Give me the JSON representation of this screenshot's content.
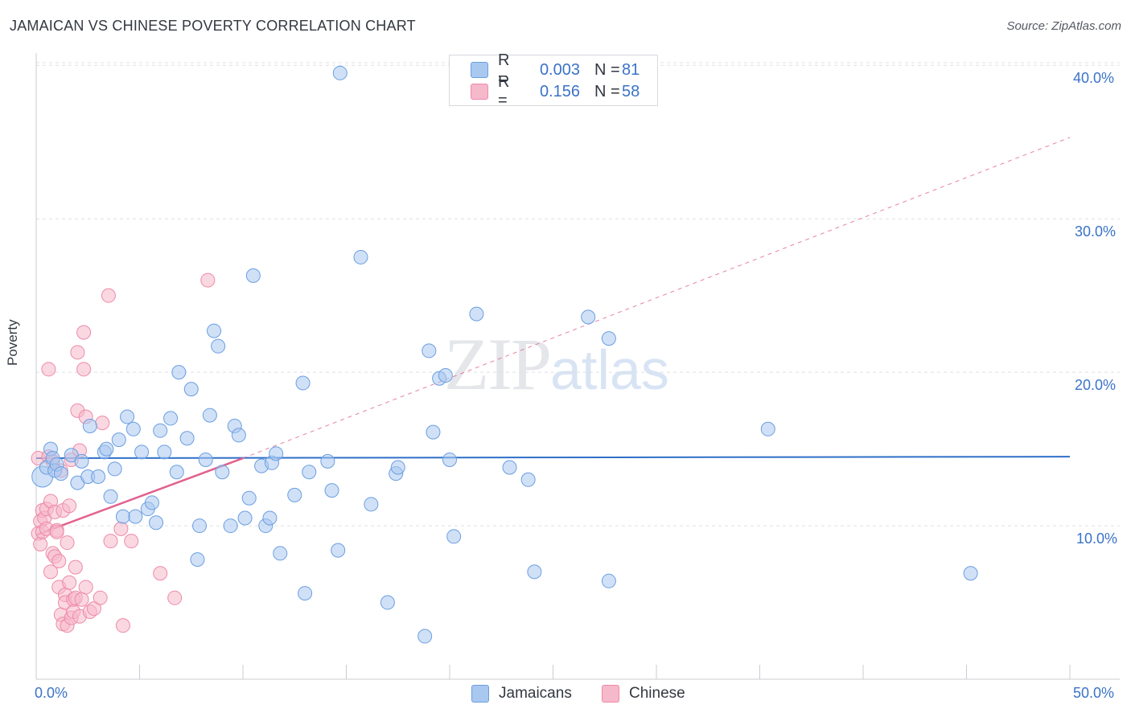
{
  "title": "JAMAICAN VS CHINESE POVERTY CORRELATION CHART",
  "source": "Source: ZipAtlas.com",
  "watermark": {
    "zip": "ZIP",
    "atlas": "atlas"
  },
  "legend": {
    "rows": [
      {
        "r_label": "R =",
        "r_value": "0.003",
        "n_label": "N =",
        "n_value": "81",
        "color": "#a9c8f0"
      },
      {
        "r_label": "R =",
        "r_value": "0.156",
        "n_label": "N =",
        "n_value": "58",
        "color": "#f6b8cb"
      }
    ]
  },
  "bottom_legend": [
    {
      "label": "Jamaicans",
      "color": "#a9c8f0"
    },
    {
      "label": "Chinese",
      "color": "#f6b8cb"
    }
  ],
  "colors": {
    "jamaican_fill": "#a9c8f0",
    "jamaican_stroke": "#6b9ee0",
    "jamaican_line": "#2e6fc8",
    "chinese_fill": "#f6b8cb",
    "chinese_stroke": "#ee8aa8",
    "chinese_line": "#e2628e",
    "grid": "#dde0e5",
    "axis_text": "#3a73c8"
  },
  "chart_data": {
    "type": "scatter",
    "title": "JAMAICAN VS CHINESE POVERTY CORRELATION CHART",
    "xlabel": "",
    "ylabel": "Poverty",
    "xlim": [
      0,
      50
    ],
    "ylim": [
      0,
      40.8
    ],
    "x_tick_labels": [
      "0.0%",
      "50.0%"
    ],
    "y_ticks": [
      10,
      20,
      30,
      40
    ],
    "y_tick_labels": [
      "10.0%",
      "20.0%",
      "30.0%",
      "40.0%"
    ],
    "grid": true,
    "legend_position": "top-center",
    "series": [
      {
        "name": "Jamaicans",
        "R": 0.003,
        "N": 81,
        "trend": {
          "x": [
            0,
            50
          ],
          "y": [
            14.4,
            14.5
          ],
          "style": "solid"
        },
        "points": [
          [
            0.3,
            13.2
          ],
          [
            0.5,
            13.8
          ],
          [
            0.7,
            15.0
          ],
          [
            0.8,
            14.4
          ],
          [
            0.9,
            13.6
          ],
          [
            1.0,
            14.0
          ],
          [
            1.2,
            13.4
          ],
          [
            1.7,
            14.6
          ],
          [
            2.0,
            12.8
          ],
          [
            2.2,
            14.2
          ],
          [
            2.5,
            13.2
          ],
          [
            2.6,
            16.5
          ],
          [
            3.0,
            13.2
          ],
          [
            3.3,
            14.8
          ],
          [
            3.4,
            15.0
          ],
          [
            3.6,
            11.9
          ],
          [
            3.8,
            13.7
          ],
          [
            4.0,
            15.6
          ],
          [
            4.2,
            10.6
          ],
          [
            4.4,
            17.1
          ],
          [
            4.7,
            16.3
          ],
          [
            4.8,
            10.6
          ],
          [
            5.1,
            14.8
          ],
          [
            5.4,
            11.1
          ],
          [
            5.6,
            11.5
          ],
          [
            5.8,
            10.2
          ],
          [
            6.0,
            16.2
          ],
          [
            6.2,
            14.8
          ],
          [
            6.5,
            17.0
          ],
          [
            6.8,
            13.5
          ],
          [
            6.9,
            20.0
          ],
          [
            7.3,
            15.7
          ],
          [
            7.5,
            18.9
          ],
          [
            7.8,
            7.8
          ],
          [
            7.9,
            10.0
          ],
          [
            8.2,
            14.3
          ],
          [
            8.4,
            17.2
          ],
          [
            8.6,
            22.7
          ],
          [
            8.8,
            21.7
          ],
          [
            9.0,
            13.5
          ],
          [
            9.4,
            10.0
          ],
          [
            9.6,
            16.5
          ],
          [
            9.8,
            15.9
          ],
          [
            10.1,
            10.5
          ],
          [
            10.3,
            11.8
          ],
          [
            10.5,
            26.3
          ],
          [
            10.9,
            13.9
          ],
          [
            11.1,
            10.0
          ],
          [
            11.3,
            10.5
          ],
          [
            11.4,
            14.1
          ],
          [
            11.6,
            14.7
          ],
          [
            11.8,
            8.2
          ],
          [
            12.5,
            12.0
          ],
          [
            12.9,
            19.3
          ],
          [
            13.0,
            5.6
          ],
          [
            13.2,
            13.5
          ],
          [
            14.1,
            14.2
          ],
          [
            14.3,
            12.3
          ],
          [
            14.6,
            8.4
          ],
          [
            14.7,
            39.5
          ],
          [
            15.7,
            27.5
          ],
          [
            16.2,
            11.4
          ],
          [
            17.0,
            5.0
          ],
          [
            17.4,
            13.4
          ],
          [
            17.5,
            13.8
          ],
          [
            18.8,
            2.8
          ],
          [
            19.0,
            21.4
          ],
          [
            19.2,
            16.1
          ],
          [
            19.5,
            19.6
          ],
          [
            19.8,
            19.8
          ],
          [
            20.0,
            14.3
          ],
          [
            20.2,
            9.3
          ],
          [
            21.3,
            23.8
          ],
          [
            22.9,
            13.8
          ],
          [
            23.8,
            13.0
          ],
          [
            24.1,
            7.0
          ],
          [
            26.7,
            23.6
          ],
          [
            27.7,
            6.4
          ],
          [
            27.7,
            22.2
          ],
          [
            35.4,
            16.3
          ],
          [
            45.2,
            6.9
          ]
        ]
      },
      {
        "name": "Chinese",
        "R": 0.156,
        "N": 58,
        "trend": {
          "x": [
            0,
            10
          ],
          "y": [
            9.4,
            14.4
          ],
          "style": "solid",
          "extended": {
            "x": [
              10,
              50
            ],
            "y": [
              14.4,
              35.3
            ],
            "style": "dashed"
          }
        },
        "points": [
          [
            0.1,
            14.4
          ],
          [
            0.1,
            9.5
          ],
          [
            0.2,
            8.8
          ],
          [
            0.2,
            10.3
          ],
          [
            0.3,
            11.0
          ],
          [
            0.3,
            9.6
          ],
          [
            0.4,
            10.5
          ],
          [
            0.5,
            9.8
          ],
          [
            0.5,
            11.1
          ],
          [
            0.6,
            14.5
          ],
          [
            0.6,
            20.2
          ],
          [
            0.7,
            7.0
          ],
          [
            0.7,
            11.6
          ],
          [
            0.8,
            14.2
          ],
          [
            0.8,
            8.2
          ],
          [
            0.9,
            10.9
          ],
          [
            0.9,
            8.0
          ],
          [
            1.0,
            9.7
          ],
          [
            1.0,
            9.6
          ],
          [
            1.1,
            6.0
          ],
          [
            1.1,
            7.7
          ],
          [
            1.2,
            4.2
          ],
          [
            1.2,
            13.6
          ],
          [
            1.3,
            11.0
          ],
          [
            1.3,
            3.6
          ],
          [
            1.4,
            5.5
          ],
          [
            1.4,
            5.0
          ],
          [
            1.5,
            3.5
          ],
          [
            1.5,
            8.9
          ],
          [
            1.6,
            6.3
          ],
          [
            1.6,
            11.3
          ],
          [
            1.7,
            4.0
          ],
          [
            1.7,
            14.3
          ],
          [
            1.8,
            4.4
          ],
          [
            1.8,
            5.2
          ],
          [
            1.9,
            7.3
          ],
          [
            1.9,
            5.3
          ],
          [
            2.0,
            17.5
          ],
          [
            2.0,
            21.3
          ],
          [
            2.1,
            14.9
          ],
          [
            2.1,
            4.1
          ],
          [
            2.2,
            5.2
          ],
          [
            2.3,
            20.2
          ],
          [
            2.3,
            22.6
          ],
          [
            2.4,
            17.1
          ],
          [
            2.4,
            6.0
          ],
          [
            2.6,
            4.4
          ],
          [
            2.8,
            4.6
          ],
          [
            3.1,
            5.3
          ],
          [
            3.2,
            16.7
          ],
          [
            3.5,
            25.0
          ],
          [
            3.6,
            9.0
          ],
          [
            4.1,
            9.8
          ],
          [
            4.2,
            3.5
          ],
          [
            4.6,
            9.0
          ],
          [
            6.0,
            6.9
          ],
          [
            6.7,
            5.3
          ],
          [
            8.3,
            26.0
          ]
        ]
      }
    ]
  }
}
